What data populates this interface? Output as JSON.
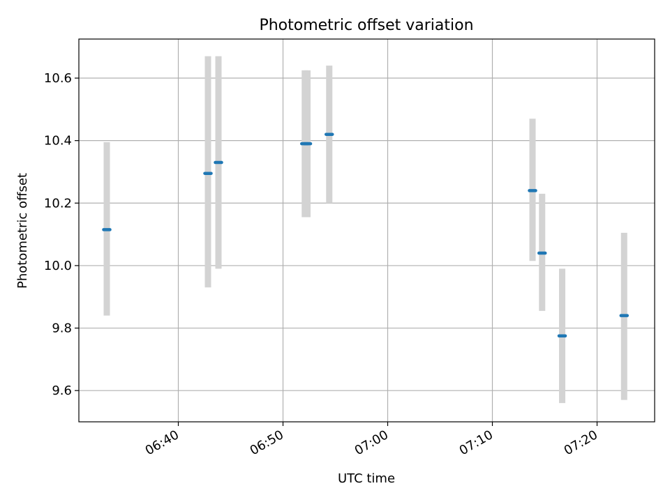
{
  "chart_data": {
    "type": "scatter",
    "title": "Photometric offset variation",
    "xlabel": "UTC time",
    "ylabel": "Photometric offset",
    "xlim": [
      "06:30:30",
      "07:25:30"
    ],
    "ylim": [
      9.5,
      10.725
    ],
    "grid": true,
    "x_ticks": [
      "06:40",
      "06:50",
      "07:00",
      "07:10",
      "07:20"
    ],
    "y_ticks": [
      "9.6",
      "9.8",
      "10.0",
      "10.2",
      "10.4",
      "10.6"
    ],
    "points": [
      {
        "x": "06:33:10",
        "y": 10.115,
        "low": 9.84,
        "high": 10.395
      },
      {
        "x": "06:42:50",
        "y": 10.295,
        "low": 9.93,
        "high": 10.67
      },
      {
        "x": "06:43:50",
        "y": 10.33,
        "low": 9.99,
        "high": 10.67
      },
      {
        "x": "06:52:05",
        "y": 10.39,
        "low": 10.155,
        "high": 10.625
      },
      {
        "x": "06:52:20",
        "y": 10.39,
        "low": 10.155,
        "high": 10.625
      },
      {
        "x": "06:54:25",
        "y": 10.42,
        "low": 10.2,
        "high": 10.64
      },
      {
        "x": "07:13:50",
        "y": 10.24,
        "low": 10.015,
        "high": 10.47
      },
      {
        "x": "07:14:45",
        "y": 10.04,
        "low": 9.855,
        "high": 10.23
      },
      {
        "x": "07:16:40",
        "y": 9.775,
        "low": 9.56,
        "high": 9.99
      },
      {
        "x": "07:22:35",
        "y": 9.84,
        "low": 9.57,
        "high": 10.105
      }
    ],
    "colors": {
      "marker": "#1f77b4",
      "errorbar": "#d3d3d3",
      "grid": "#b0b0b0",
      "frame": "#000000"
    }
  }
}
